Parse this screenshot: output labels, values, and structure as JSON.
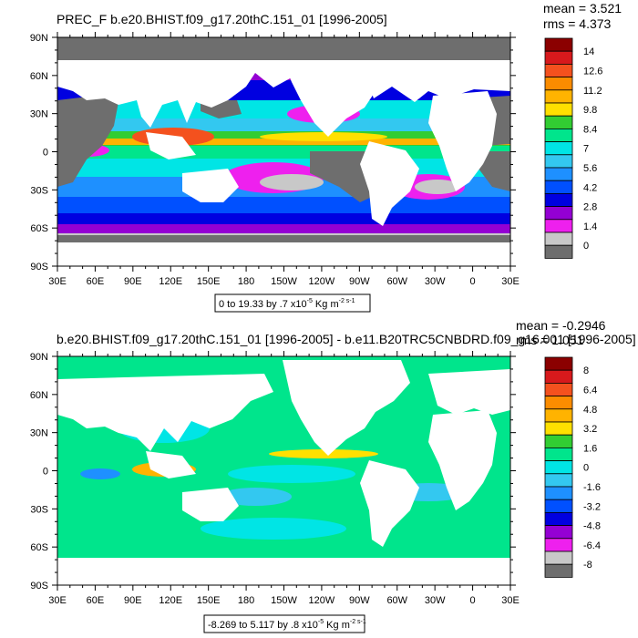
{
  "chart_data": [
    {
      "type": "heatmap",
      "title": "PREC_F b.e20.BHIST.f09_g17.20thC.151_01 [1996-2005]",
      "stats": {
        "mean": "mean = 3.521",
        "rms": "rms = 4.373"
      },
      "x_ticks": [
        "30E",
        "60E",
        "90E",
        "120E",
        "150E",
        "180",
        "150W",
        "120W",
        "90W",
        "60W",
        "30W",
        "0",
        "30E"
      ],
      "y_ticks": [
        "90N",
        "60N",
        "30N",
        "0",
        "30S",
        "60S",
        "90S"
      ],
      "xlim": [
        30,
        390
      ],
      "ylim": [
        -90,
        90
      ],
      "info_box": {
        "text": "0 to 19.33 by .7 x10",
        "exp": "-5",
        "unit": " Kg m",
        "unit_exp": "-2 s-1"
      },
      "colorbar": {
        "labels": [
          "14",
          "12.6",
          "11.2",
          "9.8",
          "8.4",
          "7",
          "5.6",
          "4.2",
          "2.8",
          "1.4",
          "0"
        ],
        "colors": [
          "#8b0000",
          "#d7191c",
          "#f4511e",
          "#fb8c00",
          "#ffb300",
          "#ffe000",
          "#32cd32",
          "#00e58c",
          "#00e5e5",
          "#33c8f0",
          "#1e90ff",
          "#0050ff",
          "#0000e0",
          "#9400d3",
          "#ee20ee",
          "#c8c8c8",
          "#6e6e6e"
        ]
      },
      "land_color": "#ffffff",
      "missing_color": "#6e6e6e"
    },
    {
      "type": "heatmap",
      "title": "b.e20.BHIST.f09_g17.20thC.151_01 [1996-2005] - b.e11.B20TRC5CNBDRD.f09_g16.001 [1996-2005]",
      "stats": {
        "mean": "mean = -0.2946",
        "rms": "rms = 1.051"
      },
      "x_ticks": [
        "30E",
        "60E",
        "90E",
        "120E",
        "150E",
        "180",
        "150W",
        "120W",
        "90W",
        "60W",
        "30W",
        "0",
        "30E"
      ],
      "y_ticks": [
        "90N",
        "60N",
        "30N",
        "0",
        "30S",
        "60S",
        "90S"
      ],
      "xlim": [
        30,
        390
      ],
      "ylim": [
        -90,
        90
      ],
      "info_box": {
        "text": "-8.269 to 5.117 by .8 x10",
        "exp": "-5",
        "unit": " Kg m",
        "unit_exp": "-2 s-1"
      },
      "colorbar": {
        "labels": [
          "8",
          "6.4",
          "4.8",
          "3.2",
          "1.6",
          "0",
          "-1.6",
          "-3.2",
          "-4.8",
          "-6.4",
          "-8"
        ],
        "colors": [
          "#8b0000",
          "#d7191c",
          "#f4511e",
          "#fb8c00",
          "#ffb300",
          "#ffe000",
          "#32cd32",
          "#00e58c",
          "#00e5e5",
          "#33c8f0",
          "#1e90ff",
          "#0050ff",
          "#0000e0",
          "#9400d3",
          "#ee20ee",
          "#c8c8c8",
          "#6e6e6e"
        ]
      },
      "land_color": "#ffffff",
      "missing_color": "#6e6e6e"
    }
  ]
}
